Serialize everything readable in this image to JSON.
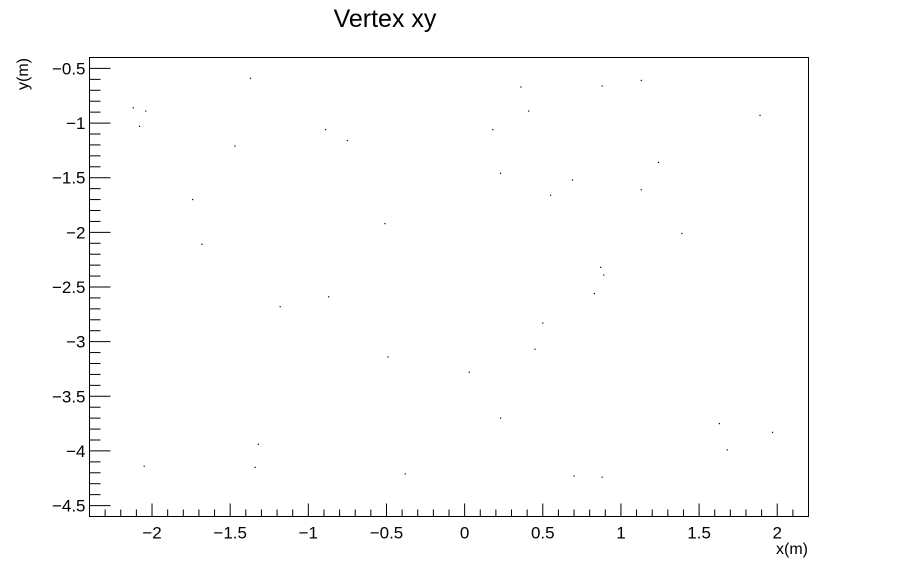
{
  "chart_data": {
    "type": "scatter",
    "title": "Vertex xy",
    "xlabel": "x(m)",
    "ylabel": "y(m)",
    "xlim": [
      -2.4,
      2.2
    ],
    "ylim": [
      -4.6,
      -0.4
    ],
    "grid": false,
    "legend": "none",
    "marker_color": "#000000",
    "xticks": [
      {
        "value": -2,
        "label": "−2"
      },
      {
        "value": -1.5,
        "label": "−1.5"
      },
      {
        "value": -1,
        "label": "−1"
      },
      {
        "value": -0.5,
        "label": "−0.5"
      },
      {
        "value": 0,
        "label": "0"
      },
      {
        "value": 0.5,
        "label": "0.5"
      },
      {
        "value": 1,
        "label": "1"
      },
      {
        "value": 1.5,
        "label": "1.5"
      },
      {
        "value": 2,
        "label": "2"
      }
    ],
    "yticks": [
      {
        "value": -0.5,
        "label": "−0.5"
      },
      {
        "value": -1,
        "label": "−1"
      },
      {
        "value": -1.5,
        "label": "−1.5"
      },
      {
        "value": -2,
        "label": "−2"
      },
      {
        "value": -2.5,
        "label": "−2.5"
      },
      {
        "value": -3,
        "label": "−3"
      },
      {
        "value": -3.5,
        "label": "−3.5"
      },
      {
        "value": -4,
        "label": "−4"
      },
      {
        "value": -4.5,
        "label": "−4.5"
      }
    ],
    "points": [
      {
        "x": -1.37,
        "y": -0.59
      },
      {
        "x": 0.36,
        "y": -0.67
      },
      {
        "x": 0.88,
        "y": -0.66
      },
      {
        "x": 1.13,
        "y": -0.61
      },
      {
        "x": -2.12,
        "y": -0.86
      },
      {
        "x": -2.04,
        "y": -0.89
      },
      {
        "x": 0.41,
        "y": -0.89
      },
      {
        "x": 1.89,
        "y": -0.93
      },
      {
        "x": -2.08,
        "y": -1.03
      },
      {
        "x": -0.89,
        "y": -1.06
      },
      {
        "x": 0.18,
        "y": -1.06
      },
      {
        "x": -0.75,
        "y": -1.16
      },
      {
        "x": -1.47,
        "y": -1.21
      },
      {
        "x": 1.24,
        "y": -1.36
      },
      {
        "x": 0.23,
        "y": -1.46
      },
      {
        "x": 0.69,
        "y": -1.52
      },
      {
        "x": 1.13,
        "y": -1.61
      },
      {
        "x": 0.55,
        "y": -1.66
      },
      {
        "x": -1.74,
        "y": -1.7
      },
      {
        "x": -0.51,
        "y": -1.92
      },
      {
        "x": 1.39,
        "y": -2.01
      },
      {
        "x": -1.68,
        "y": -2.11
      },
      {
        "x": 0.87,
        "y": -2.32
      },
      {
        "x": 0.89,
        "y": -2.39
      },
      {
        "x": 0.83,
        "y": -2.56
      },
      {
        "x": -0.87,
        "y": -2.59
      },
      {
        "x": -1.18,
        "y": -2.68
      },
      {
        "x": 0.5,
        "y": -2.83
      },
      {
        "x": 0.45,
        "y": -3.07
      },
      {
        "x": -0.49,
        "y": -3.14
      },
      {
        "x": 0.03,
        "y": -3.28
      },
      {
        "x": 0.23,
        "y": -3.7
      },
      {
        "x": 1.63,
        "y": -3.75
      },
      {
        "x": 1.97,
        "y": -3.83
      },
      {
        "x": -1.32,
        "y": -3.94
      },
      {
        "x": 1.68,
        "y": -3.99
      },
      {
        "x": -2.05,
        "y": -4.14
      },
      {
        "x": -1.34,
        "y": -4.15
      },
      {
        "x": -0.38,
        "y": -4.21
      },
      {
        "x": 0.7,
        "y": -4.23
      },
      {
        "x": 0.88,
        "y": -4.24
      }
    ]
  }
}
